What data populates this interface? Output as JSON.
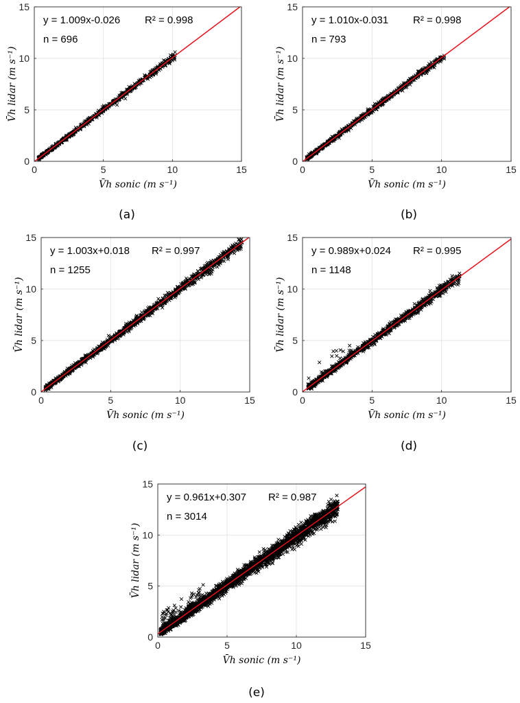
{
  "chart_data": [
    {
      "type": "scatter",
      "panel_label": "(a)",
      "xlabel": "V̄h sonic (m s⁻¹)",
      "ylabel": "V̄h lidar (m s⁻¹)",
      "xlim": [
        0,
        15
      ],
      "ylim": [
        0,
        15
      ],
      "ticks": [
        0,
        5,
        10,
        15
      ],
      "grid": true,
      "fit": {
        "slope": 1.009,
        "intercept": -0.026,
        "r2": 0.998
      },
      "annotation": {
        "equation": "y = 1.009x-0.026",
        "r2_text": "R² = 0.998",
        "n_text": "n = 696"
      },
      "n": 696,
      "data_range": [
        0.3,
        10.2
      ],
      "spread": 0.12,
      "outliers": 0,
      "line_color": "#e8101a",
      "marker": "x",
      "marker_color": "#000000"
    },
    {
      "type": "scatter",
      "panel_label": "(b)",
      "xlabel": "V̄h sonic (m s⁻¹)",
      "ylabel": "V̄h lidar (m s⁻¹)",
      "xlim": [
        0,
        15
      ],
      "ylim": [
        0,
        15
      ],
      "ticks": [
        0,
        5,
        10,
        15
      ],
      "grid": true,
      "fit": {
        "slope": 1.01,
        "intercept": -0.031,
        "r2": 0.998
      },
      "annotation": {
        "equation": "y = 1.010x-0.031",
        "r2_text": "R² = 0.998",
        "n_text": "n = 793"
      },
      "n": 793,
      "data_range": [
        0.3,
        10.2
      ],
      "spread": 0.12,
      "outliers": 0,
      "line_color": "#e8101a",
      "marker": "x",
      "marker_color": "#000000"
    },
    {
      "type": "scatter",
      "panel_label": "(c)",
      "xlabel": "V̄h sonic (m s⁻¹)",
      "ylabel": "V̄h lidar (m s⁻¹)",
      "xlim": [
        0,
        15
      ],
      "ylim": [
        0,
        15
      ],
      "ticks": [
        0,
        5,
        10,
        15
      ],
      "grid": true,
      "fit": {
        "slope": 1.003,
        "intercept": 0.018,
        "r2": 0.997
      },
      "annotation": {
        "equation": "y = 1.003x+0.018",
        "r2_text": "R² = 0.997",
        "n_text": "n = 1255"
      },
      "n": 1255,
      "data_range": [
        0.3,
        14.5
      ],
      "spread": 0.16,
      "outliers": 0,
      "line_color": "#e8101a",
      "marker": "x",
      "marker_color": "#000000"
    },
    {
      "type": "scatter",
      "panel_label": "(d)",
      "xlabel": "V̄h sonic (m s⁻¹)",
      "ylabel": "V̄h lidar (m s⁻¹)",
      "xlim": [
        0,
        15
      ],
      "ylim": [
        0,
        15
      ],
      "ticks": [
        0,
        5,
        10,
        15
      ],
      "grid": true,
      "fit": {
        "slope": 0.989,
        "intercept": 0.024,
        "r2": 0.995
      },
      "annotation": {
        "equation": "y = 0.989x+0.024",
        "r2_text": "R² = 0.995",
        "n_text": "n = 1148"
      },
      "n": 1148,
      "data_range": [
        0.4,
        11.3
      ],
      "spread": 0.18,
      "outliers": 14,
      "line_color": "#e8101a",
      "marker": "x",
      "marker_color": "#000000"
    },
    {
      "type": "scatter",
      "panel_label": "(e)",
      "xlabel": "V̄h sonic (m s⁻¹)",
      "ylabel": "V̄h lidar (m s⁻¹)",
      "xlim": [
        0,
        15
      ],
      "ylim": [
        0,
        15
      ],
      "ticks": [
        0,
        5,
        10,
        15
      ],
      "grid": true,
      "fit": {
        "slope": 0.961,
        "intercept": 0.307,
        "r2": 0.987
      },
      "annotation": {
        "equation": "y = 0.961x+0.307",
        "r2_text": "R² = 0.987",
        "n_text": "n = 3014"
      },
      "n": 3014,
      "data_range": [
        0.2,
        13.0
      ],
      "spread": 0.28,
      "outliers": 60,
      "line_color": "#e8101a",
      "marker": "x",
      "marker_color": "#000000"
    }
  ]
}
